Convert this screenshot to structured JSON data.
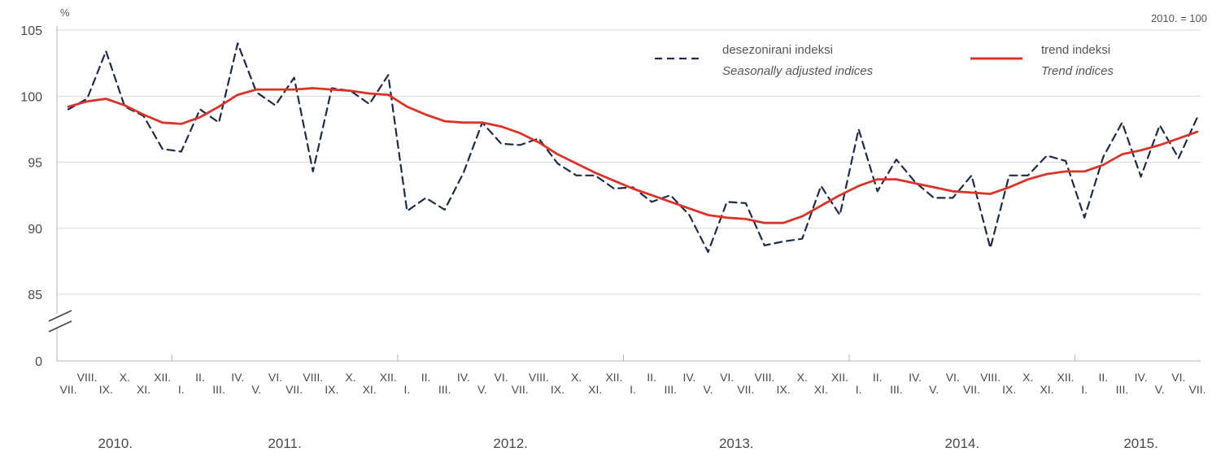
{
  "chart_data": {
    "type": "line",
    "y_unit_label": "%",
    "base_note": "2010. = 100",
    "xlabel": "",
    "ylabel": "",
    "y_ticks": [
      "105",
      "100",
      "95",
      "90",
      "85",
      "0"
    ],
    "ylim": [
      85,
      105
    ],
    "axis_break": true,
    "grid": true,
    "legend_position": "top-right",
    "month_roman": [
      "I.",
      "II.",
      "III.",
      "IV.",
      "V.",
      "VI.",
      "VII.",
      "VIII.",
      "IX.",
      "X.",
      "XI.",
      "XII."
    ],
    "year_labels": [
      {
        "label": "2010.",
        "start_index": 0,
        "end_index": 5
      },
      {
        "label": "2011.",
        "start_index": 6,
        "end_index": 17
      },
      {
        "label": "2012.",
        "start_index": 18,
        "end_index": 29
      },
      {
        "label": "2013.",
        "start_index": 30,
        "end_index": 41
      },
      {
        "label": "2014.",
        "start_index": 42,
        "end_index": 53
      },
      {
        "label": "2015.",
        "start_index": 54,
        "end_index": 60
      }
    ],
    "x": [
      "2010-07",
      "2010-08",
      "2010-09",
      "2010-10",
      "2010-11",
      "2010-12",
      "2011-01",
      "2011-02",
      "2011-03",
      "2011-04",
      "2011-05",
      "2011-06",
      "2011-07",
      "2011-08",
      "2011-09",
      "2011-10",
      "2011-11",
      "2011-12",
      "2012-01",
      "2012-02",
      "2012-03",
      "2012-04",
      "2012-05",
      "2012-06",
      "2012-07",
      "2012-08",
      "2012-09",
      "2012-10",
      "2012-11",
      "2012-12",
      "2013-01",
      "2013-02",
      "2013-03",
      "2013-04",
      "2013-05",
      "2013-06",
      "2013-07",
      "2013-08",
      "2013-09",
      "2013-10",
      "2013-11",
      "2013-12",
      "2014-01",
      "2014-02",
      "2014-03",
      "2014-04",
      "2014-05",
      "2014-06",
      "2014-07",
      "2014-08",
      "2014-09",
      "2014-10",
      "2014-11",
      "2014-12",
      "2015-01",
      "2015-02",
      "2015-03",
      "2015-04",
      "2015-05",
      "2015-06",
      "2015-07"
    ],
    "series": [
      {
        "name": "desezonirani indeksi",
        "name_en": "Seasonally adjusted indices",
        "style": "dashed",
        "color": "#1f2a44",
        "values": [
          99.0,
          99.8,
          103.4,
          99.2,
          98.5,
          96.0,
          95.8,
          99.0,
          98.0,
          104.0,
          100.3,
          99.3,
          101.4,
          94.3,
          100.6,
          100.4,
          99.4,
          101.6,
          91.3,
          92.3,
          91.4,
          94.2,
          98.0,
          96.4,
          96.3,
          96.8,
          94.9,
          94.0,
          94.0,
          93.0,
          93.1,
          92.0,
          92.5,
          91.0,
          88.2,
          92.0,
          91.9,
          88.7,
          89.0,
          89.2,
          93.2,
          91.0,
          97.5,
          92.8,
          95.2,
          93.5,
          92.3,
          92.3,
          94.0,
          88.5,
          94.0,
          94.0,
          95.5,
          95.1,
          90.8,
          95.4,
          98.0,
          93.9,
          97.8,
          95.3,
          98.4
        ]
      },
      {
        "name": "trend indeksi",
        "name_en": "Trend indices",
        "style": "solid",
        "color": "#d9342b",
        "values": [
          99.2,
          99.6,
          99.8,
          99.3,
          98.6,
          98.0,
          97.9,
          98.4,
          99.2,
          100.1,
          100.5,
          100.5,
          100.5,
          100.6,
          100.5,
          100.4,
          100.2,
          100.1,
          99.2,
          98.6,
          98.1,
          98.0,
          98.0,
          97.7,
          97.2,
          96.5,
          95.6,
          94.9,
          94.2,
          93.6,
          93.0,
          92.5,
          92.0,
          91.5,
          91.0,
          90.8,
          90.7,
          90.4,
          90.4,
          90.9,
          91.7,
          92.5,
          93.2,
          93.7,
          93.7,
          93.4,
          93.1,
          92.8,
          92.7,
          92.6,
          93.1,
          93.7,
          94.1,
          94.3,
          94.3,
          94.8,
          95.6,
          95.9,
          96.3,
          96.8,
          97.3
        ]
      }
    ]
  }
}
